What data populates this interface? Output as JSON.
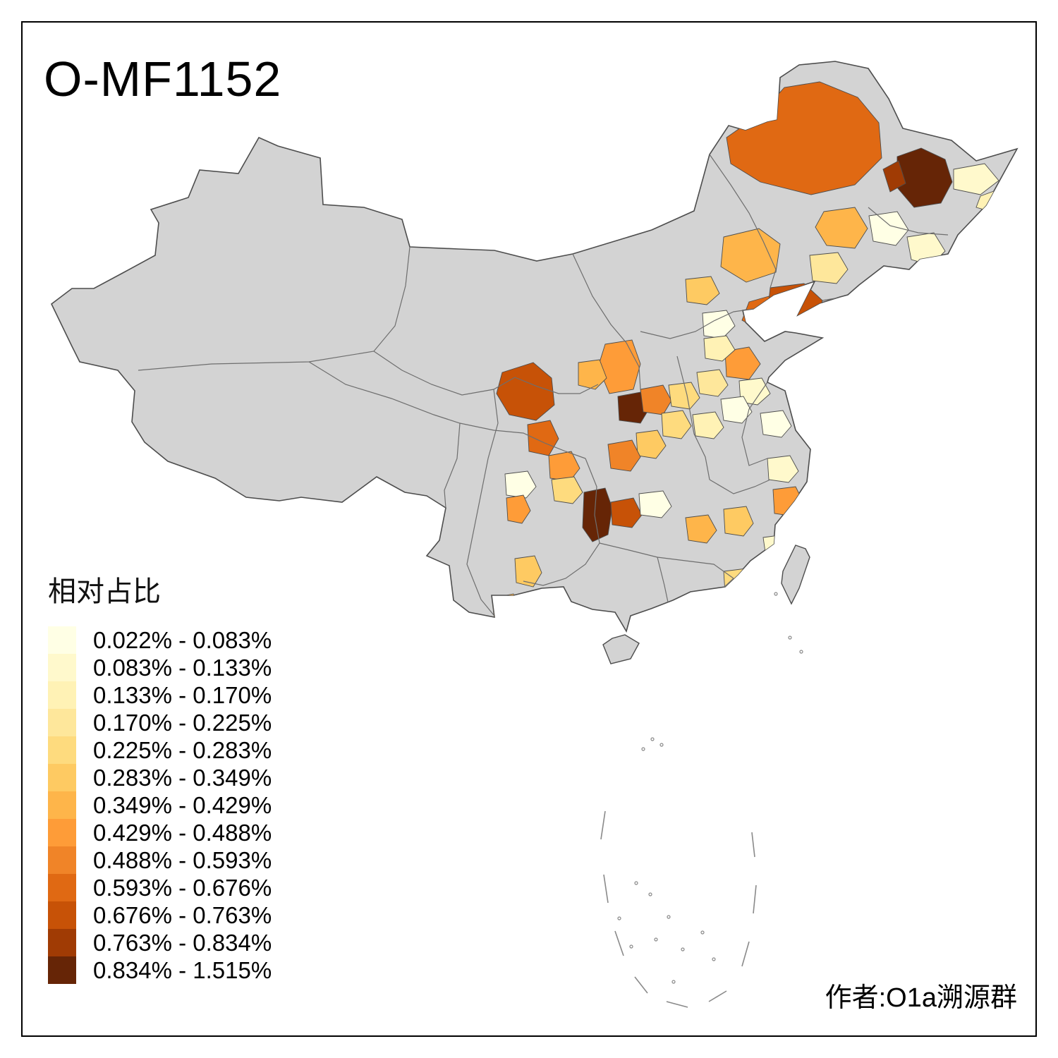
{
  "title": "O-MF1152",
  "attribution": "作者:O1a溯源群",
  "legend": {
    "title": "相对占比",
    "bins": [
      {
        "label": "0.022% - 0.083%",
        "color": "#FFFFE5"
      },
      {
        "label": "0.083% - 0.133%",
        "color": "#FFF9CC"
      },
      {
        "label": "0.133% - 0.170%",
        "color": "#FFF2B5"
      },
      {
        "label": "0.170% - 0.225%",
        "color": "#FEE79B"
      },
      {
        "label": "0.225% - 0.283%",
        "color": "#FEDB7E"
      },
      {
        "label": "0.283% - 0.349%",
        "color": "#FECA62"
      },
      {
        "label": "0.349% - 0.429%",
        "color": "#FEB54A"
      },
      {
        "label": "0.429% - 0.488%",
        "color": "#FE9C38"
      },
      {
        "label": "0.488% - 0.593%",
        "color": "#F08428"
      },
      {
        "label": "0.593% - 0.676%",
        "color": "#E06913"
      },
      {
        "label": "0.676% - 0.763%",
        "color": "#C75207"
      },
      {
        "label": "0.763% - 0.834%",
        "color": "#A03B04"
      },
      {
        "label": "0.834% - 1.515%",
        "color": "#662506"
      }
    ]
  },
  "map": {
    "base_fill": "#D3D3D3",
    "border_color": "#4D4D4D",
    "dash_line_color": "#8A8A8A",
    "regions": [
      {
        "id": "r1",
        "bin": 9
      },
      {
        "id": "r2",
        "bin": 12
      },
      {
        "id": "r3",
        "bin": 11
      },
      {
        "id": "r4",
        "bin": 1
      },
      {
        "id": "r5",
        "bin": 2
      },
      {
        "id": "r6",
        "bin": 6
      },
      {
        "id": "r7",
        "bin": 0
      },
      {
        "id": "r8",
        "bin": 1
      },
      {
        "id": "r9",
        "bin": 6
      },
      {
        "id": "r10",
        "bin": 3
      },
      {
        "id": "r11",
        "bin": 10
      },
      {
        "id": "r12",
        "bin": 9
      },
      {
        "id": "r13",
        "bin": 5
      },
      {
        "id": "r14",
        "bin": 7
      },
      {
        "id": "r15",
        "bin": 0
      },
      {
        "id": "r16",
        "bin": 2
      },
      {
        "id": "r17",
        "bin": 1
      },
      {
        "id": "r18",
        "bin": 7
      },
      {
        "id": "r19",
        "bin": 6
      },
      {
        "id": "r20",
        "bin": 10
      },
      {
        "id": "r21",
        "bin": 9
      },
      {
        "id": "r22",
        "bin": 12
      },
      {
        "id": "r23",
        "bin": 8
      },
      {
        "id": "r24",
        "bin": 4
      },
      {
        "id": "r25",
        "bin": 5
      },
      {
        "id": "r26",
        "bin": 8
      },
      {
        "id": "r27",
        "bin": 7
      },
      {
        "id": "r28",
        "bin": 0
      },
      {
        "id": "r29",
        "bin": 4
      },
      {
        "id": "r30",
        "bin": 7
      },
      {
        "id": "r31",
        "bin": 12
      },
      {
        "id": "r32",
        "bin": 10
      },
      {
        "id": "r33",
        "bin": 0
      },
      {
        "id": "r34",
        "bin": 6
      },
      {
        "id": "r35",
        "bin": 5
      },
      {
        "id": "r36",
        "bin": 7
      },
      {
        "id": "r37",
        "bin": 1
      },
      {
        "id": "r38",
        "bin": 0
      },
      {
        "id": "r39",
        "bin": 1
      },
      {
        "id": "r40",
        "bin": 4
      },
      {
        "id": "r41",
        "bin": 5
      },
      {
        "id": "r42",
        "bin": 6
      },
      {
        "id": "r43",
        "bin": 2
      },
      {
        "id": "r44",
        "bin": 3
      },
      {
        "id": "r45",
        "bin": 0
      },
      {
        "id": "r46",
        "bin": 2
      },
      {
        "id": "r47",
        "bin": 4
      },
      {
        "id": "r48",
        "bin": 0
      },
      {
        "id": "r49",
        "bin": 3
      },
      {
        "id": "r50",
        "bin": 0
      }
    ]
  }
}
